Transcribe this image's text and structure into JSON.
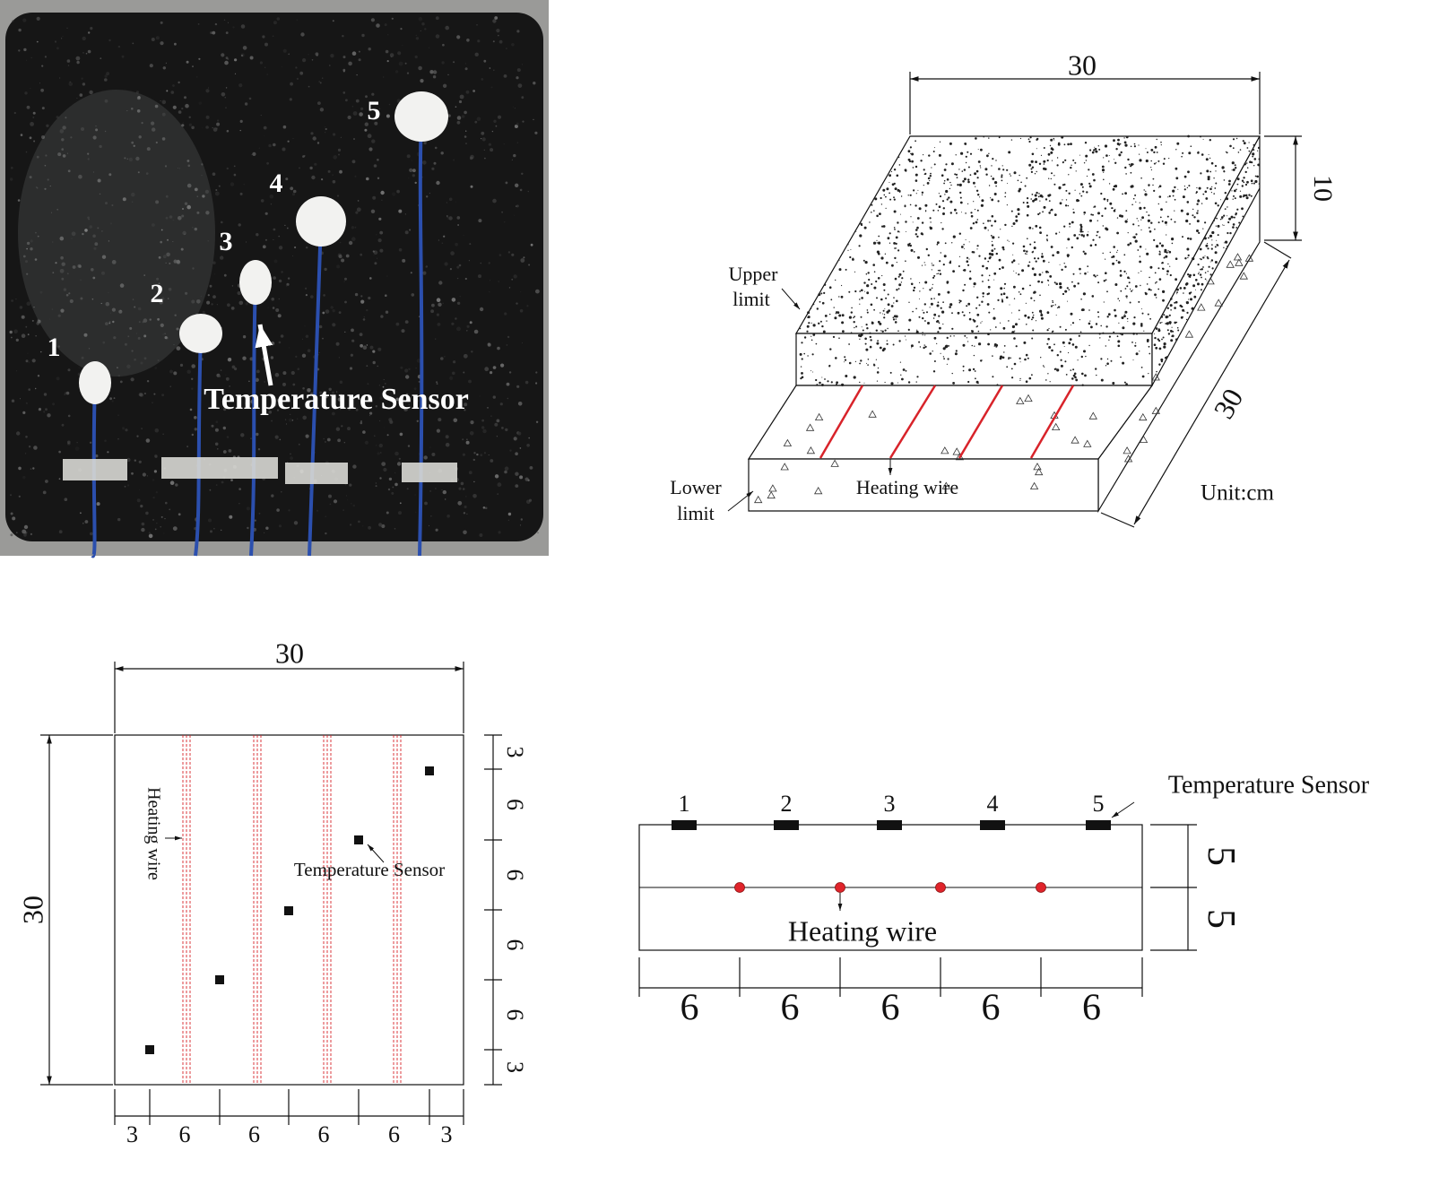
{
  "photo": {
    "sensor_numbers": [
      "1",
      "2",
      "3",
      "4",
      "5"
    ],
    "annotation": "Temperature Sensor"
  },
  "isometric": {
    "width": "30",
    "height": "10",
    "depth": "30",
    "upper_limit": [
      "Upper",
      "limit"
    ],
    "lower_limit": [
      "Lower",
      "limit"
    ],
    "heating_wire": "Heating wire",
    "unit": "Unit:cm"
  },
  "plan": {
    "width": "30",
    "height": "30",
    "right_spacings": [
      "3",
      "6",
      "6",
      "6",
      "6",
      "3"
    ],
    "bottom_spacings": [
      "3",
      "6",
      "6",
      "6",
      "6",
      "3"
    ],
    "heating_wire": "Heating wire",
    "sensor_label": "Temperature Sensor"
  },
  "section": {
    "sensor_numbers": [
      "1",
      "2",
      "3",
      "4",
      "5"
    ],
    "sensor_label": "Temperature Sensor",
    "heating_wire": "Heating wire",
    "layer_thicknesses": [
      "5",
      "5"
    ],
    "spacings": [
      "6",
      "6",
      "6",
      "6",
      "6"
    ]
  }
}
